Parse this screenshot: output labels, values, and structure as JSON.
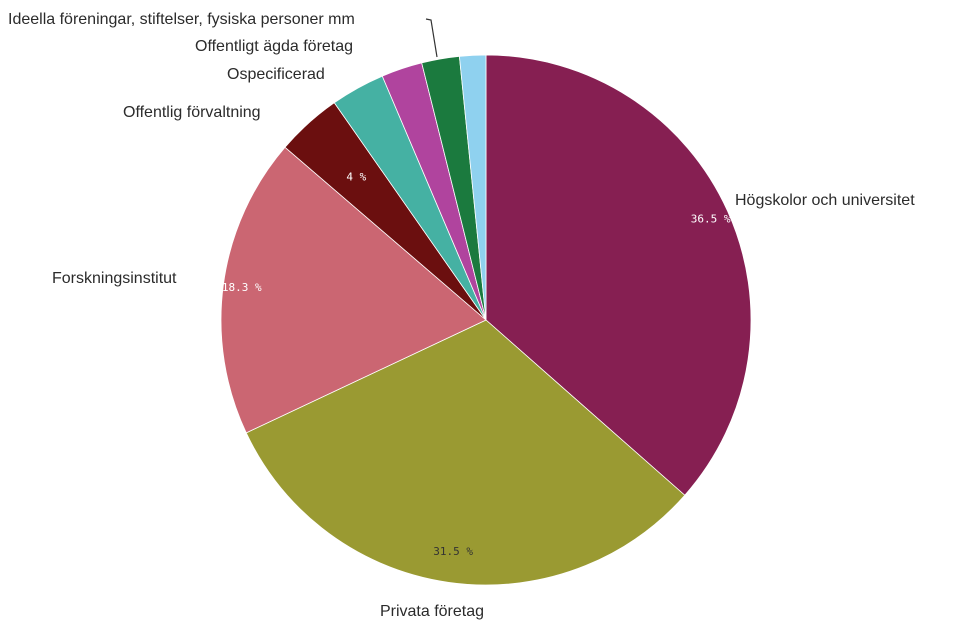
{
  "chart_data": {
    "type": "pie",
    "slices": [
      {
        "name": "Högskolor och universitet",
        "value": 36.5,
        "color": "#861f52",
        "value_label": "36.5 %"
      },
      {
        "name": "Privata företag",
        "value": 31.5,
        "color": "#9a9a32",
        "value_label": "31.5 %"
      },
      {
        "name": "Forskningsinstitut",
        "value": 18.3,
        "color": "#cb6672",
        "value_label": "18.3 %"
      },
      {
        "name": "Offentlig förvaltning",
        "value": 4.0,
        "color": "#6b0f0f",
        "value_label": "4 %"
      },
      {
        "name": "Ospecificerad",
        "value": 3.3,
        "color": "#45b1a3",
        "value_label": ""
      },
      {
        "name": "Offentligt ägda företag",
        "value": 2.5,
        "color": "#b0449e",
        "value_label": ""
      },
      {
        "name": "Ideella föreningar, stiftelser, fysiska personer mm",
        "value": 2.3,
        "color": "#1b7a3e",
        "value_label": ""
      },
      {
        "name": "",
        "value": 1.6,
        "color": "#8fd1ef",
        "value_label": ""
      }
    ],
    "start": "12 o'clock",
    "direction": "clockwise",
    "legend": "none"
  }
}
